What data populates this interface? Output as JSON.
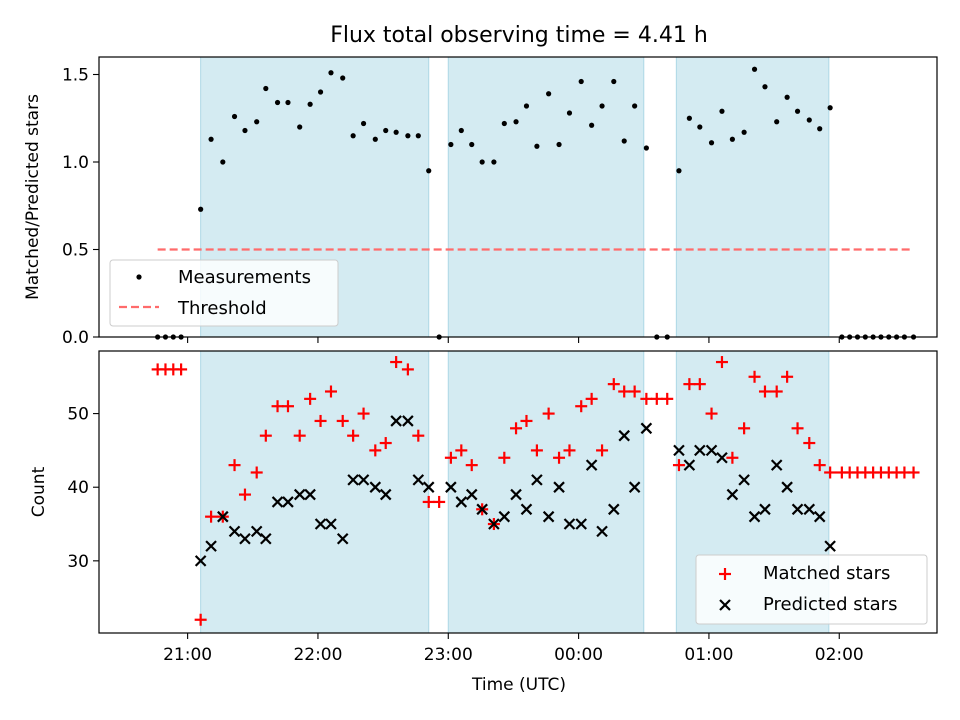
{
  "title": "Flux total observing time = 4.41 h",
  "colors": {
    "band": "#add8e6",
    "measurement": "#000000",
    "threshold": "#ff6b6b",
    "matched": "#ff0000",
    "predicted": "#000000"
  },
  "chart_data": [
    {
      "type": "scatter",
      "ylabel": "Matched/Predicted stars",
      "xlim": [
        -0.68,
        5.75
      ],
      "ylim": [
        0.0,
        1.6
      ],
      "yticks": [
        0.0,
        0.5,
        1.0,
        1.5
      ],
      "ytick_labels": [
        "0.0",
        "0.5",
        "1.0",
        "1.5"
      ],
      "legend": {
        "placement": "lower-left",
        "entries": [
          "Measurements",
          "Threshold"
        ]
      },
      "bands": [
        [
          0.1,
          1.85
        ],
        [
          2.0,
          3.5
        ],
        [
          3.75,
          4.92
        ]
      ],
      "threshold": {
        "name": "Threshold",
        "value": 0.5,
        "x_range": [
          -0.23,
          5.57
        ]
      },
      "series": [
        {
          "name": "Measurements",
          "x": [
            -0.23,
            -0.17,
            -0.11,
            -0.05,
            0.1,
            0.18,
            0.27,
            0.36,
            0.44,
            0.53,
            0.6,
            0.69,
            0.77,
            0.86,
            0.94,
            1.02,
            1.1,
            1.19,
            1.27,
            1.35,
            1.44,
            1.52,
            1.6,
            1.69,
            1.77,
            1.85,
            1.93,
            2.02,
            2.1,
            2.18,
            2.26,
            2.35,
            2.43,
            2.52,
            2.6,
            2.68,
            2.77,
            2.85,
            2.93,
            3.02,
            3.1,
            3.18,
            3.27,
            3.35,
            3.43,
            3.52,
            3.6,
            3.68,
            3.77,
            3.85,
            3.93,
            4.02,
            4.1,
            4.18,
            4.27,
            4.35,
            4.43,
            4.52,
            4.6,
            4.68,
            4.77,
            4.85,
            4.93,
            5.02,
            5.08,
            5.14,
            5.2,
            5.26,
            5.32,
            5.38,
            5.44,
            5.5,
            5.57
          ],
          "y": [
            0.0,
            0.0,
            0.0,
            0.0,
            0.73,
            1.13,
            1.0,
            1.26,
            1.18,
            1.23,
            1.42,
            1.34,
            1.34,
            1.2,
            1.33,
            1.4,
            1.51,
            1.48,
            1.15,
            1.22,
            1.13,
            1.18,
            1.17,
            1.15,
            1.15,
            0.95,
            0.0,
            1.1,
            1.18,
            1.1,
            1.0,
            1.0,
            1.22,
            1.23,
            1.32,
            1.09,
            1.39,
            1.1,
            1.28,
            1.46,
            1.21,
            1.32,
            1.46,
            1.12,
            1.32,
            1.08,
            0.0,
            0.0,
            0.95,
            1.25,
            1.2,
            1.11,
            1.29,
            1.13,
            1.17,
            1.53,
            1.43,
            1.23,
            1.37,
            1.29,
            1.24,
            1.19,
            1.31,
            0.0,
            0.0,
            0.0,
            0.0,
            0.0,
            0.0,
            0.0,
            0.0,
            0.0,
            0.0
          ]
        }
      ]
    },
    {
      "type": "scatter",
      "xlabel": "Time (UTC)",
      "ylabel": "Count",
      "xlim": [
        -0.68,
        5.75
      ],
      "ylim": [
        20.2,
        58.5
      ],
      "yticks": [
        30,
        40,
        50
      ],
      "ytick_labels": [
        "30",
        "40",
        "50"
      ],
      "xticks": [
        0,
        1,
        2,
        3,
        4,
        5
      ],
      "xtick_labels": [
        "21:00",
        "22:00",
        "23:00",
        "00:00",
        "01:00",
        "02:00"
      ],
      "legend": {
        "placement": "lower-right",
        "entries": [
          "Matched stars",
          "Predicted stars"
        ]
      },
      "bands": [
        [
          0.1,
          1.85
        ],
        [
          2.0,
          3.5
        ],
        [
          3.75,
          4.92
        ]
      ],
      "series": [
        {
          "name": "Matched stars",
          "x": [
            -0.23,
            -0.17,
            -0.11,
            -0.05,
            0.1,
            0.18,
            0.27,
            0.36,
            0.44,
            0.53,
            0.6,
            0.69,
            0.77,
            0.86,
            0.94,
            1.02,
            1.1,
            1.19,
            1.27,
            1.35,
            1.44,
            1.52,
            1.6,
            1.69,
            1.77,
            1.85,
            1.93,
            2.02,
            2.1,
            2.18,
            2.26,
            2.35,
            2.43,
            2.52,
            2.6,
            2.68,
            2.77,
            2.85,
            2.93,
            3.02,
            3.1,
            3.18,
            3.27,
            3.35,
            3.43,
            3.52,
            3.6,
            3.68,
            3.77,
            3.85,
            3.93,
            4.02,
            4.1,
            4.18,
            4.27,
            4.35,
            4.43,
            4.52,
            4.6,
            4.68,
            4.77,
            4.85,
            4.93,
            5.02,
            5.08,
            5.14,
            5.2,
            5.26,
            5.32,
            5.38,
            5.44,
            5.5,
            5.57
          ],
          "y": [
            56,
            56,
            56,
            56,
            22,
            36,
            36,
            43,
            39,
            42,
            47,
            51,
            51,
            47,
            52,
            49,
            53,
            49,
            47,
            50,
            45,
            46,
            57,
            56,
            47,
            38,
            38,
            44,
            45,
            43,
            37,
            35,
            44,
            48,
            49,
            45,
            50,
            44,
            45,
            51,
            52,
            45,
            54,
            53,
            53,
            52,
            52,
            52,
            43,
            54,
            54,
            50,
            57,
            44,
            48,
            55,
            53,
            53,
            55,
            48,
            46,
            43,
            42,
            42,
            42,
            42,
            42,
            42,
            42,
            42,
            42,
            42,
            42
          ]
        },
        {
          "name": "Predicted stars",
          "x": [
            0.1,
            0.18,
            0.27,
            0.36,
            0.44,
            0.53,
            0.6,
            0.69,
            0.77,
            0.86,
            0.94,
            1.02,
            1.1,
            1.19,
            1.27,
            1.35,
            1.44,
            1.52,
            1.6,
            1.69,
            1.77,
            1.85,
            2.02,
            2.1,
            2.18,
            2.26,
            2.35,
            2.43,
            2.52,
            2.6,
            2.68,
            2.77,
            2.85,
            2.93,
            3.02,
            3.1,
            3.18,
            3.27,
            3.35,
            3.43,
            3.52,
            3.77,
            3.85,
            3.93,
            4.02,
            4.1,
            4.18,
            4.27,
            4.35,
            4.43,
            4.52,
            4.6,
            4.68,
            4.77,
            4.85,
            4.93
          ],
          "y": [
            30,
            32,
            36,
            34,
            33,
            34,
            33,
            38,
            38,
            39,
            39,
            35,
            35,
            33,
            41,
            41,
            40,
            39,
            49,
            49,
            41,
            40,
            40,
            38,
            39,
            37,
            35,
            36,
            39,
            37,
            41,
            36,
            40,
            35,
            35,
            43,
            34,
            37,
            47,
            40,
            48,
            45,
            43,
            45,
            45,
            44,
            39,
            41,
            36,
            37,
            43,
            40,
            37,
            37,
            36,
            32
          ]
        }
      ]
    }
  ]
}
